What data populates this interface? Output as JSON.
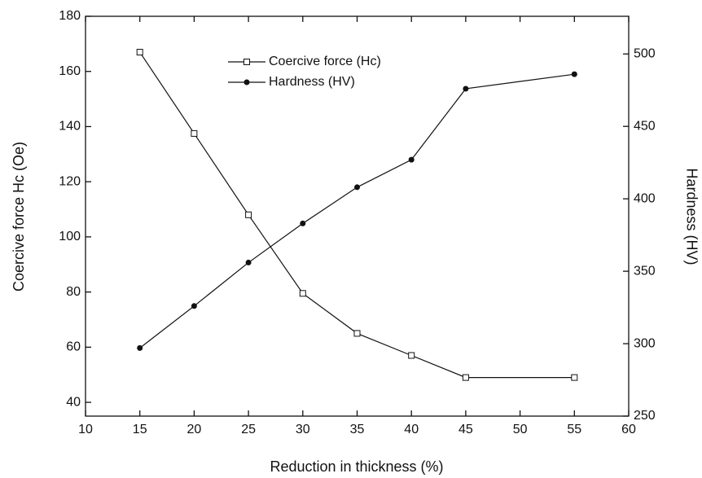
{
  "chart_data": {
    "type": "line",
    "x_label": "Reduction in thickness (%)",
    "y_label": "Coercive force Hc (Oe)",
    "y2_label": "Hardness (HV)",
    "x": [
      15,
      20,
      25,
      30,
      35,
      40,
      45,
      55
    ],
    "series": [
      {
        "name": "Coercive force (Hc)",
        "color": "#111111",
        "marker": "open-square",
        "values": [
          167,
          137.5,
          108,
          79.5,
          65,
          57,
          49,
          49
        ]
      },
      {
        "name": "Hardness (HV)",
        "color": "#111111",
        "marker": "filled-circle",
        "axis": "y2",
        "values": [
          297,
          326,
          356,
          383,
          408,
          427,
          476,
          486
        ]
      }
    ],
    "xlim": [
      10,
      60
    ],
    "xticks": [
      10,
      15,
      20,
      25,
      30,
      35,
      40,
      45,
      50,
      55,
      60
    ],
    "ylim": [
      35,
      180
    ],
    "yticks": [
      40,
      60,
      80,
      100,
      120,
      140,
      160,
      180
    ],
    "y2lim": [
      250,
      526
    ],
    "y2ticks": [
      250,
      300,
      350,
      400,
      450,
      500
    ],
    "legend": "top-center"
  }
}
